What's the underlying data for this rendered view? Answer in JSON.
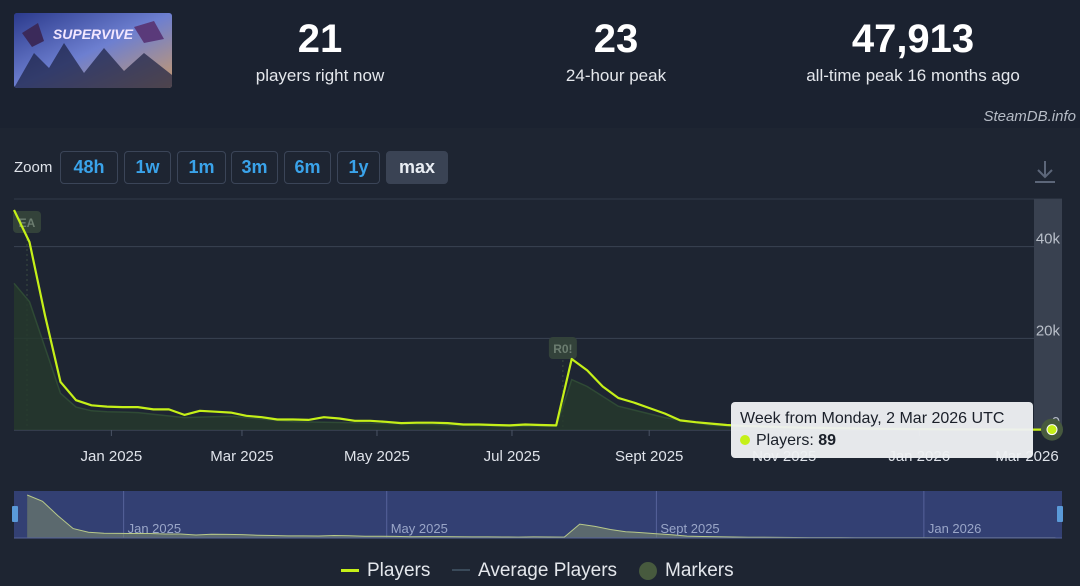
{
  "header": {
    "stats": [
      {
        "value": "21",
        "label": "players right now"
      },
      {
        "value": "23",
        "label": "24-hour peak"
      },
      {
        "value": "47,913",
        "label": "all-time peak 16 months ago"
      }
    ],
    "watermark": "SteamDB.info",
    "thumbnail_text": "SUPERVIVE"
  },
  "toolbar": {
    "zoom_label": "Zoom",
    "zoom_options": [
      "48h",
      "1w",
      "1m",
      "3m",
      "6m",
      "1y",
      "max"
    ],
    "active_zoom": "max",
    "download_icon": "download-icon"
  },
  "tooltip": {
    "title": "Week from Monday, 2 Mar 2026 UTC",
    "series_label": "Players:",
    "series_value": "89"
  },
  "legend": {
    "players": "Players",
    "average": "Average Players",
    "markers": "Markers"
  },
  "colors": {
    "players": "#c5f018",
    "average": "#2f4a35",
    "markers": "#475a3e",
    "navigator_fill": "#3b4a8a"
  },
  "chart_data": {
    "type": "line",
    "x_tick_labels": [
      "Jan 2025",
      "Mar 2025",
      "May 2025",
      "Jul 2025",
      "Sept 2025",
      "Nov 2025",
      "Jan 2026",
      "Mar 2026"
    ],
    "y_tick_labels": [
      "0",
      "20k",
      "40k"
    ],
    "ylim": [
      0,
      48000
    ],
    "navigator_labels": [
      "Jan 2025",
      "May 2025",
      "Sept 2025",
      "Jan 2026"
    ],
    "markers": [
      {
        "label": "EA",
        "date": "2024-11-20"
      },
      {
        "label": "R0!",
        "date": "2025-07-24"
      }
    ],
    "series": [
      {
        "name": "Players",
        "points": [
          [
            "2024-11-18",
            48000
          ],
          [
            "2024-11-25",
            41000
          ],
          [
            "2024-12-02",
            25000
          ],
          [
            "2024-12-09",
            10500
          ],
          [
            "2024-12-16",
            6500
          ],
          [
            "2024-12-23",
            5400
          ],
          [
            "2024-12-30",
            5100
          ],
          [
            "2025-01-06",
            5000
          ],
          [
            "2025-01-13",
            5000
          ],
          [
            "2025-01-20",
            4500
          ],
          [
            "2025-01-27",
            4500
          ],
          [
            "2025-02-03",
            3300
          ],
          [
            "2025-02-10",
            4200
          ],
          [
            "2025-02-17",
            4000
          ],
          [
            "2025-02-24",
            3800
          ],
          [
            "2025-03-03",
            3100
          ],
          [
            "2025-03-10",
            2800
          ],
          [
            "2025-03-17",
            2300
          ],
          [
            "2025-03-24",
            2300
          ],
          [
            "2025-03-31",
            2200
          ],
          [
            "2025-04-07",
            2800
          ],
          [
            "2025-04-14",
            2500
          ],
          [
            "2025-04-21",
            2000
          ],
          [
            "2025-04-28",
            2000
          ],
          [
            "2025-05-05",
            1800
          ],
          [
            "2025-05-12",
            1500
          ],
          [
            "2025-05-19",
            1600
          ],
          [
            "2025-05-26",
            1600
          ],
          [
            "2025-06-02",
            1500
          ],
          [
            "2025-06-09",
            1200
          ],
          [
            "2025-06-16",
            1200
          ],
          [
            "2025-06-23",
            1100
          ],
          [
            "2025-06-30",
            1000
          ],
          [
            "2025-07-07",
            1200
          ],
          [
            "2025-07-14",
            1100
          ],
          [
            "2025-07-21",
            1000
          ],
          [
            "2025-07-28",
            15500
          ],
          [
            "2025-08-04",
            13000
          ],
          [
            "2025-08-11",
            9500
          ],
          [
            "2025-08-18",
            7000
          ],
          [
            "2025-08-25",
            6000
          ],
          [
            "2025-09-01",
            4800
          ],
          [
            "2025-09-08",
            3600
          ],
          [
            "2025-09-15",
            2100
          ],
          [
            "2025-09-22",
            1700
          ],
          [
            "2025-09-29",
            1400
          ],
          [
            "2025-10-06",
            1100
          ],
          [
            "2025-10-13",
            900
          ],
          [
            "2025-10-20",
            800
          ],
          [
            "2025-10-27",
            700
          ],
          [
            "2025-11-03",
            600
          ],
          [
            "2025-11-10",
            500
          ],
          [
            "2025-11-17",
            450
          ],
          [
            "2025-11-24",
            400
          ],
          [
            "2025-12-01",
            350
          ],
          [
            "2025-12-08",
            300
          ],
          [
            "2025-12-15",
            260
          ],
          [
            "2025-12-22",
            230
          ],
          [
            "2025-12-29",
            200
          ],
          [
            "2026-01-05",
            180
          ],
          [
            "2026-01-12",
            160
          ],
          [
            "2026-01-19",
            140
          ],
          [
            "2026-01-26",
            120
          ],
          [
            "2026-02-02",
            110
          ],
          [
            "2026-02-09",
            100
          ],
          [
            "2026-02-16",
            95
          ],
          [
            "2026-02-23",
            92
          ],
          [
            "2026-03-02",
            89
          ]
        ]
      },
      {
        "name": "Average Players",
        "points": [
          [
            "2024-11-18",
            32000
          ],
          [
            "2024-11-25",
            28000
          ],
          [
            "2024-12-02",
            18000
          ],
          [
            "2024-12-09",
            8000
          ],
          [
            "2024-12-16",
            5000
          ],
          [
            "2024-12-23",
            4200
          ],
          [
            "2024-12-30",
            4000
          ],
          [
            "2025-01-13",
            3800
          ],
          [
            "2025-02-03",
            2700
          ],
          [
            "2025-02-24",
            3000
          ],
          [
            "2025-03-24",
            1800
          ],
          [
            "2025-04-21",
            1600
          ],
          [
            "2025-05-26",
            1200
          ],
          [
            "2025-06-30",
            800
          ],
          [
            "2025-07-21",
            800
          ],
          [
            "2025-07-28",
            11000
          ],
          [
            "2025-08-04",
            9500
          ],
          [
            "2025-08-18",
            5200
          ],
          [
            "2025-09-08",
            2700
          ],
          [
            "2025-09-29",
            1000
          ],
          [
            "2025-10-27",
            500
          ],
          [
            "2025-12-01",
            250
          ],
          [
            "2026-01-05",
            130
          ],
          [
            "2026-02-02",
            80
          ],
          [
            "2026-03-02",
            65
          ]
        ]
      }
    ]
  }
}
